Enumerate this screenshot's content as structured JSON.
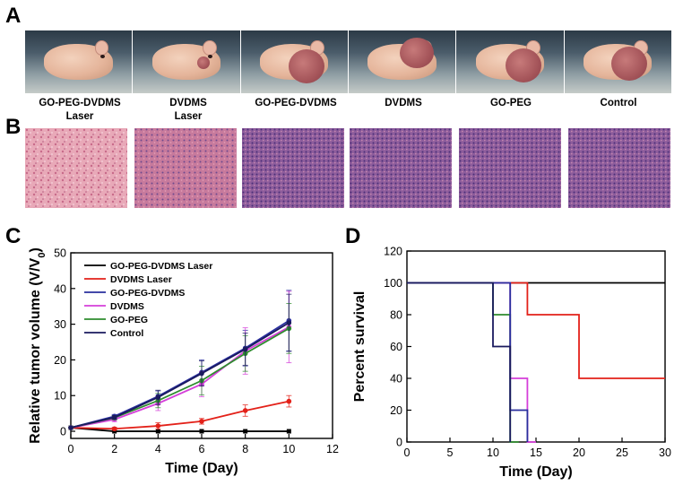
{
  "panel_letters": {
    "a": "A",
    "b": "B",
    "c": "C",
    "d": "D"
  },
  "groups": [
    {
      "label": "GO-PEG-DVDMS",
      "label2": "Laser"
    },
    {
      "label": "DVDMS",
      "label2": "Laser"
    },
    {
      "label": "GO-PEG-DVDMS",
      "label2": ""
    },
    {
      "label": "DVDMS",
      "label2": ""
    },
    {
      "label": "GO-PEG",
      "label2": ""
    },
    {
      "label": "Control",
      "label2": ""
    }
  ],
  "chart_data": [
    {
      "type": "line",
      "xlabel": "Time (Day)",
      "ylabel": "Relative tumor volume (V/V",
      "ylabel_sub": "0",
      "ylabel_tail": ")",
      "xlim": [
        0,
        12
      ],
      "ylim": [
        -2,
        50
      ],
      "xticks": [
        0,
        2,
        4,
        6,
        8,
        10,
        12
      ],
      "yticks": [
        0,
        10,
        20,
        30,
        40,
        50
      ],
      "legend_position": "top-left",
      "x": [
        0,
        2,
        4,
        6,
        8,
        10
      ],
      "series": [
        {
          "name": "GO-PEG-DVDMS Laser",
          "color": "#000000",
          "marker": "square",
          "values": [
            1,
            0,
            0,
            0,
            0,
            0
          ],
          "errors": [
            0,
            0,
            0,
            0,
            0,
            0
          ]
        },
        {
          "name": "DVDMS Laser",
          "color": "#e32119",
          "marker": "circle",
          "values": [
            1,
            0.7,
            1.5,
            2.8,
            5.8,
            8.4
          ],
          "errors": [
            0,
            0.4,
            0.9,
            0.8,
            1.6,
            1.6
          ]
        },
        {
          "name": "GO-PEG-DVDMS",
          "color": "#2a2f9e",
          "marker": "circle",
          "values": [
            1,
            4.2,
            9.8,
            16.5,
            23.3,
            31
          ],
          "errors": [
            0,
            0.5,
            1.5,
            3.5,
            5,
            8.5
          ]
        },
        {
          "name": "DVDMS",
          "color": "#d53fd9",
          "marker": "circle",
          "values": [
            1,
            3.3,
            7.8,
            13.2,
            22.5,
            29.2
          ],
          "errors": [
            0,
            0.6,
            2,
            3.5,
            6.5,
            10
          ]
        },
        {
          "name": "GO-PEG",
          "color": "#2e8b2e",
          "marker": "circle",
          "values": [
            1,
            3.8,
            8.6,
            14.2,
            21.8,
            28.8
          ],
          "errors": [
            0,
            0.6,
            2,
            4,
            5,
            7
          ]
        },
        {
          "name": "Control",
          "color": "#1a1a5e",
          "marker": "circle",
          "values": [
            1,
            3.9,
            9.5,
            16.2,
            23,
            30.4
          ],
          "errors": [
            0,
            0.5,
            2,
            3.5,
            4.5,
            8
          ]
        }
      ]
    },
    {
      "type": "line",
      "style": "step",
      "xlabel": "Time (Day)",
      "ylabel": "Percent survival",
      "xlim": [
        0,
        30
      ],
      "ylim": [
        0,
        120
      ],
      "xticks": [
        0,
        5,
        10,
        15,
        20,
        25,
        30
      ],
      "yticks": [
        0,
        20,
        40,
        60,
        80,
        100,
        120
      ],
      "series": [
        {
          "name": "GO-PEG-DVDMS Laser",
          "color": "#000000",
          "points": [
            [
              0,
              100
            ],
            [
              30,
              100
            ]
          ]
        },
        {
          "name": "DVDMS Laser",
          "color": "#e32119",
          "points": [
            [
              0,
              100
            ],
            [
              14,
              100
            ],
            [
              14,
              80
            ],
            [
              20,
              80
            ],
            [
              20,
              40
            ],
            [
              30,
              40
            ]
          ]
        },
        {
          "name": "DVDMS",
          "color": "#d53fd9",
          "points": [
            [
              0,
              100
            ],
            [
              12,
              100
            ],
            [
              12,
              40
            ],
            [
              14,
              40
            ],
            [
              14,
              0
            ],
            [
              15,
              0
            ]
          ]
        },
        {
          "name": "GO-PEG",
          "color": "#2e8b2e",
          "points": [
            [
              0,
              100
            ],
            [
              10,
              100
            ],
            [
              10,
              80
            ],
            [
              12,
              80
            ],
            [
              12,
              0
            ],
            [
              13,
              0
            ]
          ]
        },
        {
          "name": "GO-PEG-DVDMS",
          "color": "#2a2f9e",
          "points": [
            [
              0,
              100
            ],
            [
              12,
              100
            ],
            [
              12,
              20
            ],
            [
              14,
              20
            ],
            [
              14,
              0
            ]
          ]
        },
        {
          "name": "Control",
          "color": "#1a1a5e",
          "points": [
            [
              0,
              100
            ],
            [
              10,
              100
            ],
            [
              10,
              60
            ],
            [
              12,
              60
            ],
            [
              12,
              0
            ]
          ]
        }
      ]
    }
  ]
}
